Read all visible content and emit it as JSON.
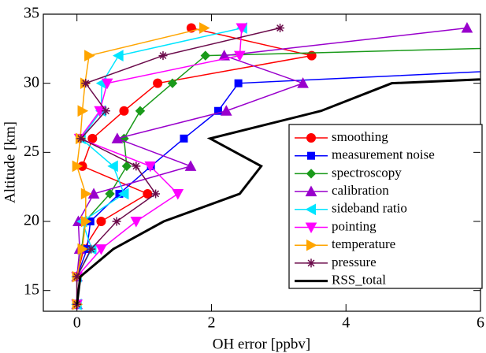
{
  "chart_data": {
    "type": "line",
    "xlabel": "OH error [ppbv]",
    "ylabel": "Altitude [km]",
    "xlim": [
      -0.5,
      6
    ],
    "ylim": [
      13.5,
      35
    ],
    "xticks": [
      0,
      2,
      4,
      6
    ],
    "yticks": [
      15,
      20,
      25,
      30,
      35
    ],
    "y": [
      14,
      16,
      18,
      20,
      22,
      24,
      26,
      28,
      30,
      32,
      34
    ],
    "series": [
      {
        "name": "smoothing",
        "color": "#ff0000",
        "marker": "circle",
        "values": [
          0,
          0,
          0.1,
          0.36,
          1.05,
          0.08,
          0.23,
          0.7,
          1.2,
          3.49,
          1.7
        ]
      },
      {
        "name": "measurement noise",
        "color": "#0000ff",
        "marker": "square",
        "values": [
          0,
          0,
          0.15,
          0.2,
          0.63,
          1.1,
          1.59,
          2.1,
          2.4,
          11,
          null
        ]
      },
      {
        "name": "spectroscopy",
        "color": "#1a9a1a",
        "marker": "diamond",
        "values": [
          0,
          0,
          0.07,
          0.12,
          0.49,
          0.74,
          0.7,
          0.94,
          1.42,
          1.91,
          17.7
        ]
      },
      {
        "name": "calibration",
        "color": "#9900cc",
        "marker": "triangle-up",
        "values": [
          0,
          0,
          0.04,
          0.02,
          0.25,
          1.69,
          0.6,
          2.22,
          3.36,
          2.19,
          5.8
        ]
      },
      {
        "name": "sideband ratio",
        "color": "#00e5ff",
        "marker": "triangle-left",
        "values": [
          0,
          0,
          0.22,
          0.08,
          0.7,
          0.54,
          0.06,
          0.36,
          0.37,
          0.62,
          2.46
        ]
      },
      {
        "name": "pointing",
        "color": "#ff00ff",
        "marker": "triangle-down",
        "values": [
          0,
          0,
          0.36,
          0.88,
          1.5,
          1.09,
          0.04,
          0.34,
          0.45,
          2.42,
          2.45
        ]
      },
      {
        "name": "temperature",
        "color": "#ffa500",
        "marker": "triangle-right",
        "values": [
          0,
          0,
          0.08,
          0.13,
          0.13,
          0,
          0.05,
          0.08,
          0.12,
          0.18,
          1.89
        ]
      },
      {
        "name": "pressure",
        "color": "#6b0b4b",
        "marker": "star",
        "values": [
          0,
          0,
          0.21,
          0.59,
          1.17,
          0.88,
          0.06,
          0.43,
          0.13,
          1.28,
          3.02
        ]
      },
      {
        "name": "RSS_total",
        "color": "#000000",
        "marker": "none",
        "values": [
          0,
          0.05,
          0.54,
          1.29,
          2.42,
          2.74,
          1.98,
          3.63,
          4.68,
          14,
          null
        ]
      }
    ]
  }
}
